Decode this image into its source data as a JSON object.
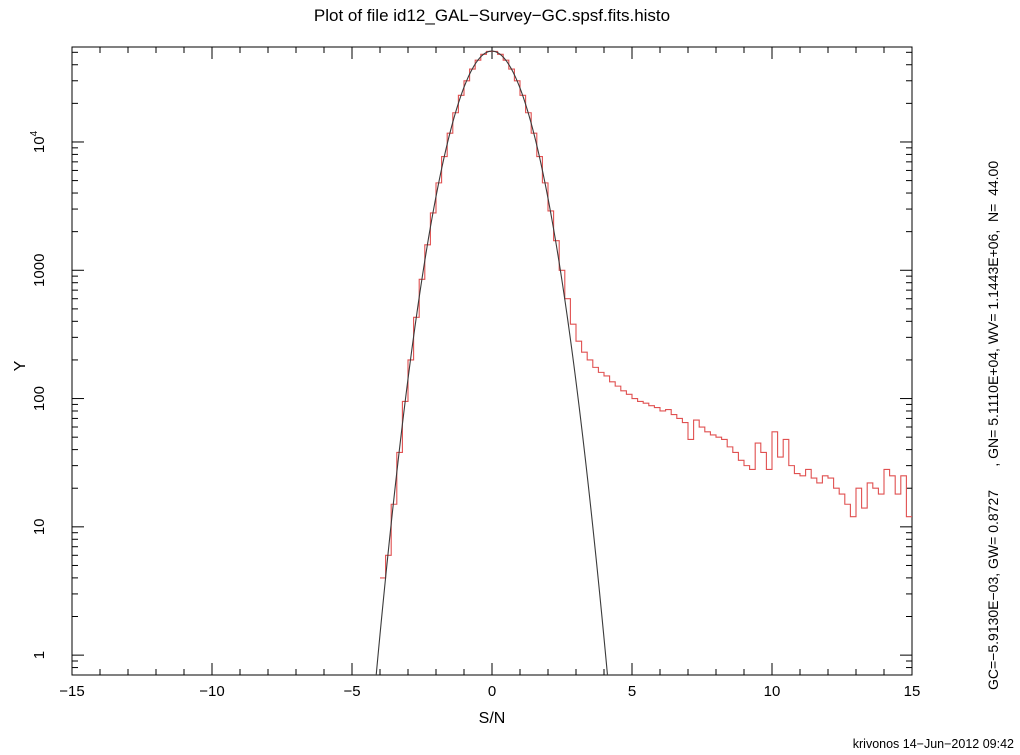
{
  "chart_data": {
    "type": "bar",
    "subtype": "step-histogram-with-gaussian-fit",
    "title": "Plot of file id12_GAL−Survey−GC.spsf.fits.histo",
    "xlabel": "S/N",
    "ylabel": "Y",
    "xlim": [
      -15,
      15
    ],
    "ylim": [
      0.7,
      55000
    ],
    "yscale": "log",
    "grid": false,
    "legend": "none",
    "x_major_step": 5,
    "x_minor_step": 1,
    "x_ticks": [
      {
        "value": -15,
        "label": "−15"
      },
      {
        "value": -10,
        "label": "−10"
      },
      {
        "value": -5,
        "label": "−5"
      },
      {
        "value": 0,
        "label": "0"
      },
      {
        "value": 5,
        "label": "5"
      },
      {
        "value": 10,
        "label": "10"
      },
      {
        "value": 15,
        "label": "15"
      }
    ],
    "y_ticks": [
      {
        "value": 1,
        "label": "1"
      },
      {
        "value": 10,
        "label": "10"
      },
      {
        "value": 100,
        "label": "100"
      },
      {
        "value": 1000,
        "label": "1000"
      },
      {
        "value": 10000,
        "label": "10",
        "sup": "4"
      }
    ],
    "series": [
      {
        "name": "histogram",
        "color": "#e05050",
        "bin_start": -4.0,
        "bin_width": 0.2,
        "counts": [
          4,
          6,
          15,
          38,
          95,
          200,
          430,
          850,
          1580,
          2800,
          4800,
          7700,
          11700,
          16900,
          23100,
          30000,
          37000,
          43400,
          48200,
          50800,
          50800,
          48200,
          43400,
          37000,
          30000,
          23100,
          16900,
          11700,
          7700,
          4800,
          2900,
          1700,
          1000,
          600,
          380,
          280,
          230,
          200,
          175,
          160,
          150,
          135,
          125,
          115,
          108,
          100,
          95,
          92,
          88,
          85,
          80,
          82,
          75,
          70,
          65,
          48,
          68,
          60,
          55,
          52,
          50,
          48,
          42,
          38,
          33,
          30,
          28,
          45,
          38,
          28,
          55,
          35,
          48,
          30,
          26,
          25,
          28,
          24,
          22,
          25,
          24,
          20,
          18,
          15,
          12,
          20,
          14,
          22,
          20,
          18,
          28,
          25,
          18,
          25,
          12
        ]
      },
      {
        "name": "gaussian-fit",
        "color": "#3a3a3a",
        "amplitude": 51110,
        "center": -0.005913,
        "sigma": 0.8727
      }
    ]
  },
  "annotations": {
    "fit_params": "GC=−5.9130E−03, GW= 0.8727      , GN= 5.1110E+04, WV= 1.1443E+06,  N=  44.00",
    "credit": "krivonos 14−Jun−2012 09:42"
  }
}
